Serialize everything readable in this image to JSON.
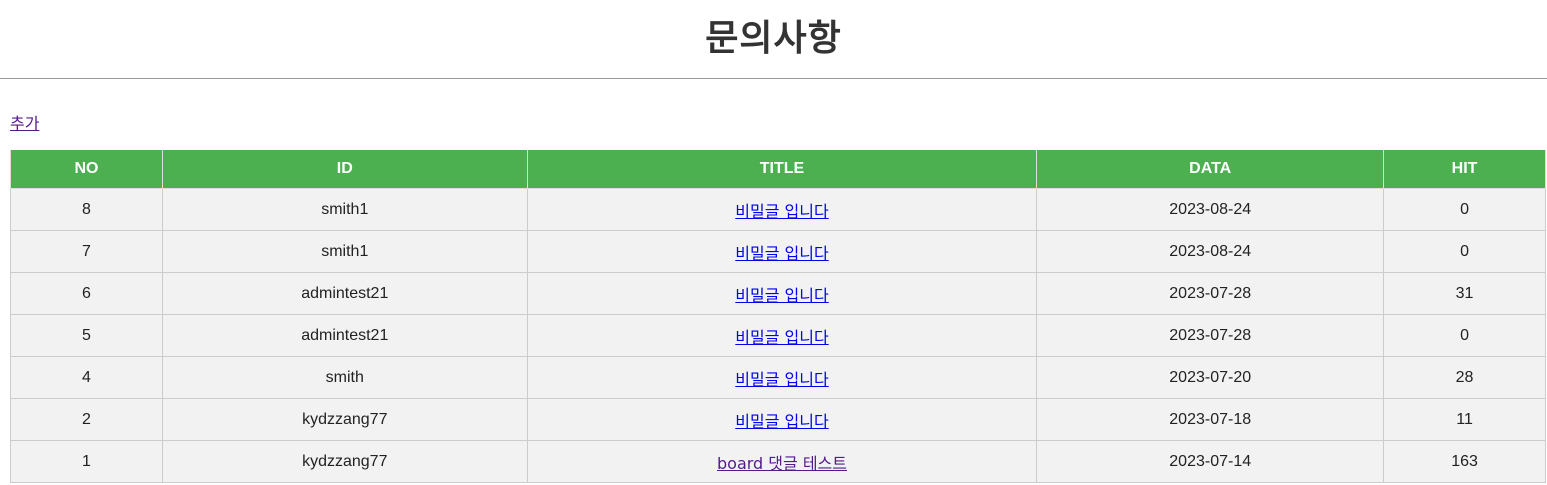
{
  "header": {
    "title": "문의사항"
  },
  "actions": {
    "add_label": "추가"
  },
  "table": {
    "columns": [
      "NO",
      "ID",
      "TITLE",
      "DATA",
      "HIT"
    ],
    "rows": [
      {
        "no": "8",
        "id": "smith1",
        "title": "비밀글 입니다",
        "date": "2023-08-24",
        "hit": "0",
        "visited": false
      },
      {
        "no": "7",
        "id": "smith1",
        "title": "비밀글 입니다",
        "date": "2023-08-24",
        "hit": "0",
        "visited": false
      },
      {
        "no": "6",
        "id": "admintest21",
        "title": "비밀글 입니다",
        "date": "2023-07-28",
        "hit": "31",
        "visited": false
      },
      {
        "no": "5",
        "id": "admintest21",
        "title": "비밀글 입니다",
        "date": "2023-07-28",
        "hit": "0",
        "visited": false
      },
      {
        "no": "4",
        "id": "smith",
        "title": "비밀글 입니다",
        "date": "2023-07-20",
        "hit": "28",
        "visited": false
      },
      {
        "no": "2",
        "id": "kydzzang77",
        "title": "비밀글 입니다",
        "date": "2023-07-18",
        "hit": "11",
        "visited": false
      },
      {
        "no": "1",
        "id": "kydzzang77",
        "title": "board 댓글 테스트",
        "date": "2023-07-14",
        "hit": "163",
        "visited": true
      }
    ]
  },
  "colors": {
    "header_bg": "#4caf50",
    "row_bg": "#f2f2f2",
    "link": "#0000ee",
    "visited_link": "#551a8b"
  }
}
